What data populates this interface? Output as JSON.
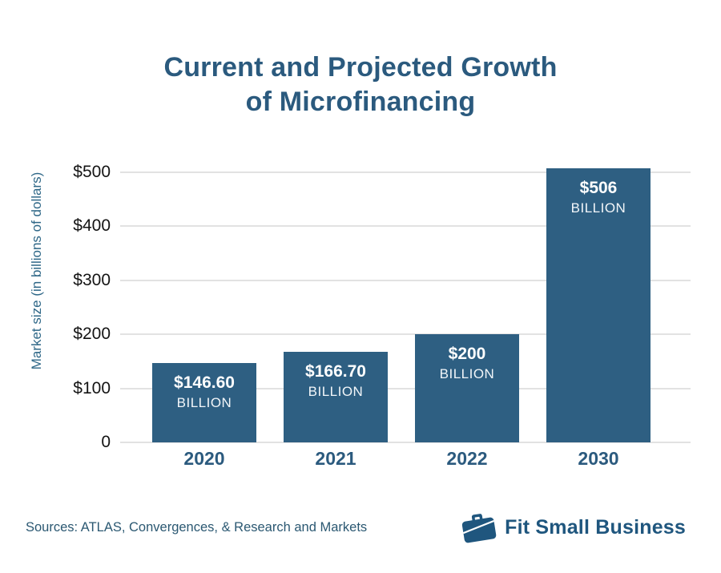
{
  "page": {
    "title_line1": "Current and Projected Growth",
    "title_line2": "of Microfinancing",
    "source_note": "Sources: ATLAS, Convergences, & Research and Markets",
    "brand": {
      "name": "Fit Small Business",
      "icon": "briefcase-icon"
    }
  },
  "colors": {
    "bar": "#2E5F82",
    "title": "#2B5A7E",
    "y_axis_title": "#2E6787",
    "tick_label": "#141414",
    "gridline": "#E2E2E2",
    "bar_value_text": "#FFFFFF",
    "x_tick_label": "#2B5A7E",
    "source_text": "#2B5872",
    "brand": "#1F567E",
    "background": "#FFFFFF"
  },
  "chart_data": {
    "type": "bar",
    "title": "Current and Projected Growth of Microfinancing",
    "categories": [
      "2020",
      "2021",
      "2022",
      "2030"
    ],
    "values": [
      146.6,
      166.7,
      200,
      506
    ],
    "bar_labels": [
      {
        "value": "$146.60",
        "unit": "BILLION"
      },
      {
        "value": "$166.70",
        "unit": "BILLION"
      },
      {
        "value": "$200",
        "unit": "BILLION"
      },
      {
        "value": "$506",
        "unit": "BILLION"
      }
    ],
    "xlabel": "",
    "ylabel": "Market size (in billions of dollars)",
    "yticks": [
      "$500",
      "$400",
      "$300",
      "$200",
      "$100",
      "0"
    ],
    "ytick_values": [
      500,
      400,
      300,
      200,
      100,
      0
    ],
    "ylim": [
      0,
      521
    ],
    "grid": true,
    "legend_position": "none"
  }
}
